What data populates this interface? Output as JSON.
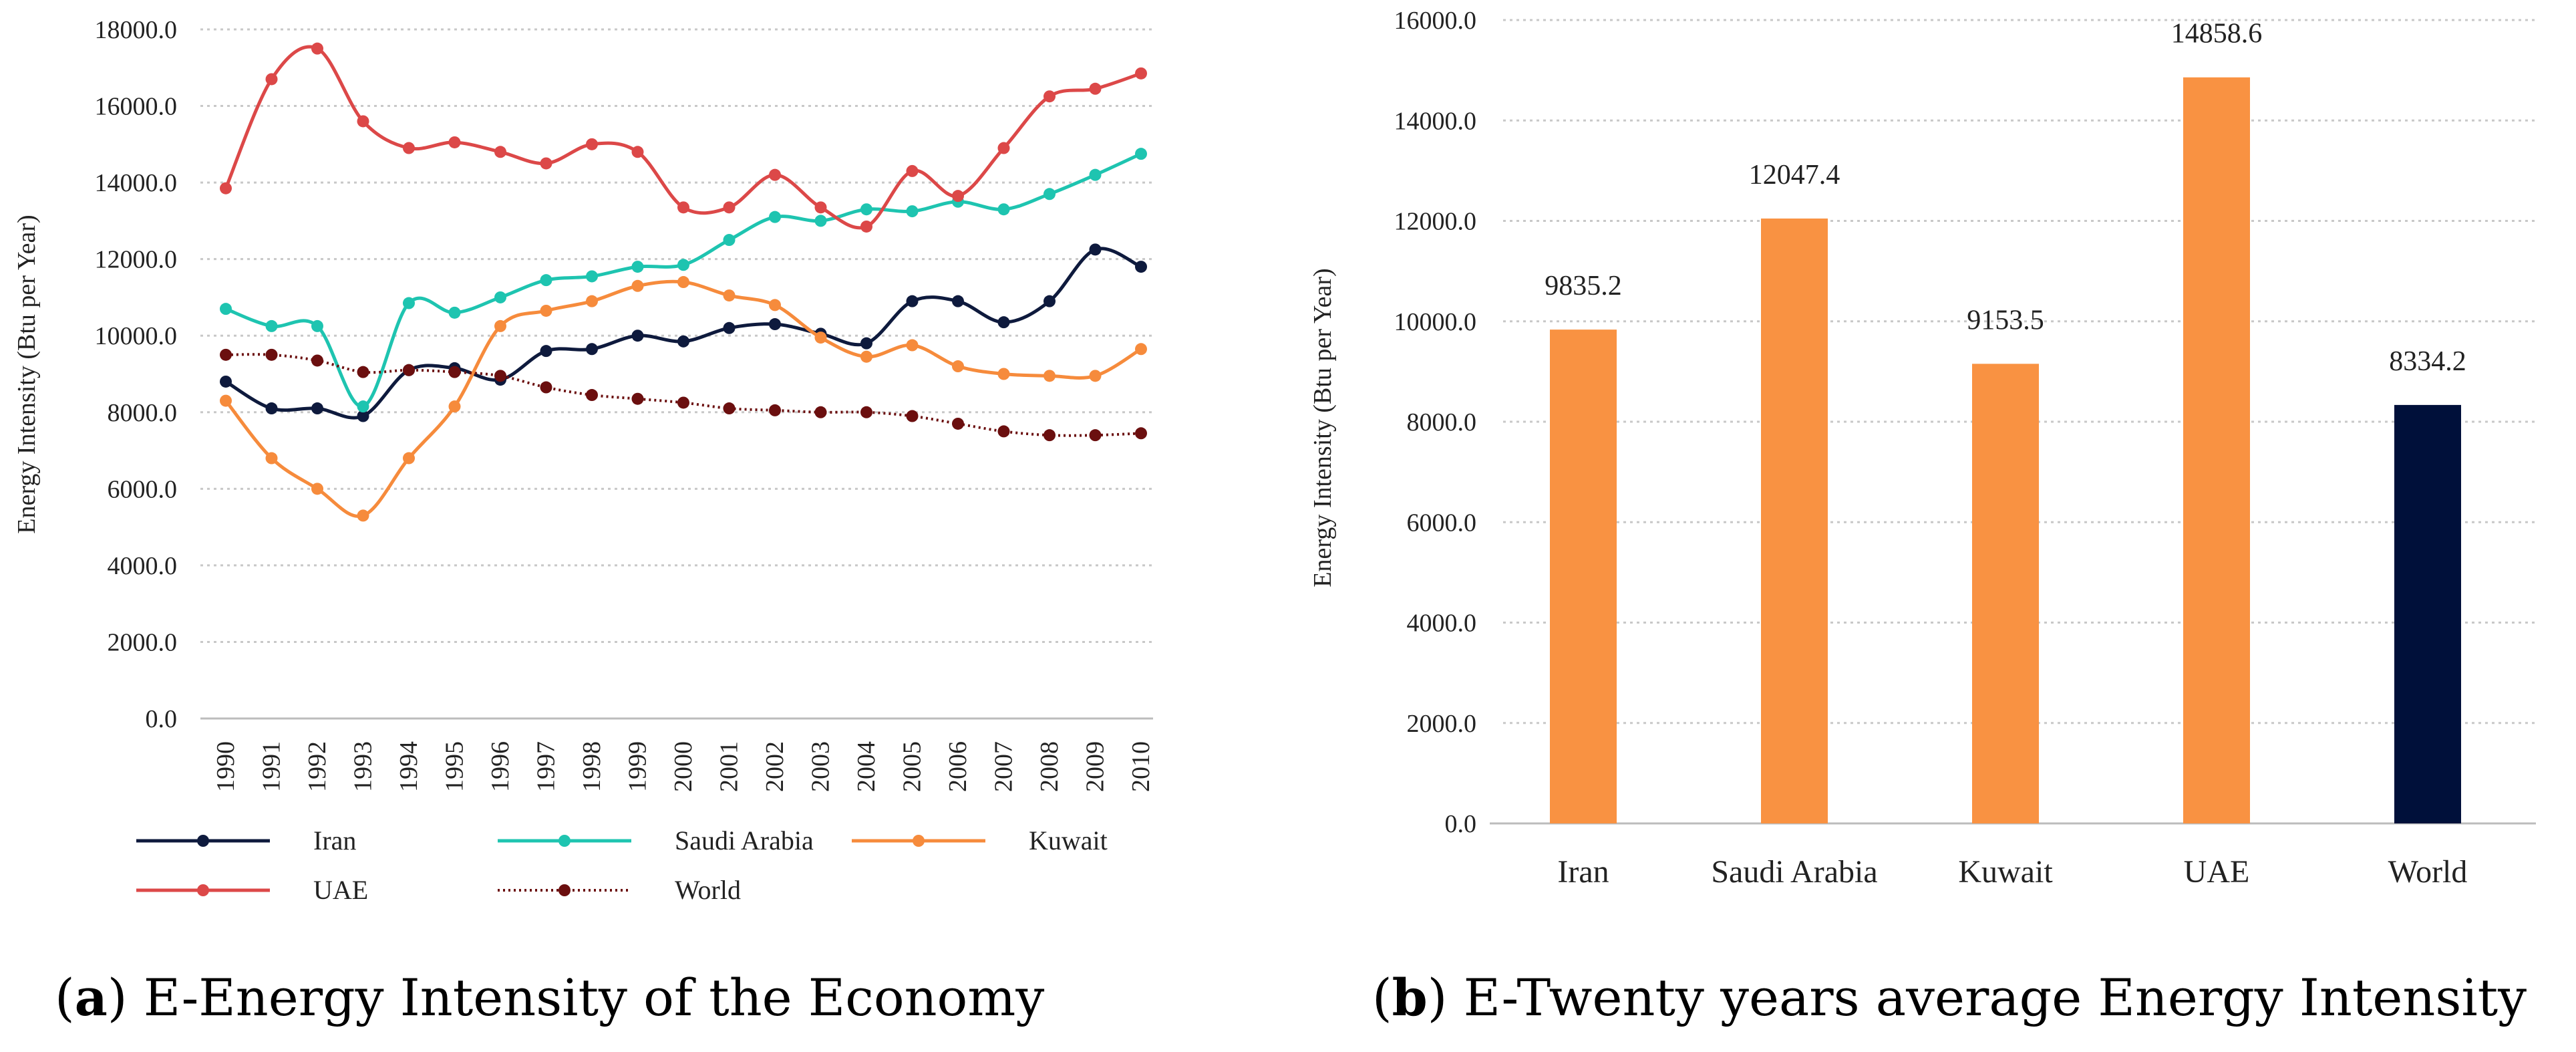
{
  "captions": {
    "a_letter": "a",
    "a_text": "E-Energy Intensity of the Economy",
    "b_letter": "b",
    "b_text": "E-Twenty years average Energy Intensity"
  },
  "chart_data": [
    {
      "type": "line",
      "ylabel": "Energy Intensity (Btu per Year)",
      "xlabel": "",
      "ylim": [
        0,
        18000
      ],
      "y_ticks": [
        "0.0",
        "2000.0",
        "4000.0",
        "6000.0",
        "8000.0",
        "10000.0",
        "12000.0",
        "14000.0",
        "16000.0",
        "18000.0"
      ],
      "grid": "horizontal dotted",
      "legend_position": "bottom",
      "x": [
        "1990",
        "1991",
        "1992",
        "1993",
        "1994",
        "1995",
        "1996",
        "1997",
        "1998",
        "1999",
        "2000",
        "2001",
        "2002",
        "2003",
        "2004",
        "2005",
        "2006",
        "2007",
        "2008",
        "2009",
        "2010"
      ],
      "series": [
        {
          "name": "Iran",
          "color": "#0e1a3d",
          "style": "solid",
          "values": [
            8800,
            8100,
            8100,
            7900,
            9100,
            9150,
            8850,
            9600,
            9650,
            10000,
            9850,
            10200,
            10300,
            10050,
            9800,
            10900,
            10900,
            10350,
            10900,
            12250,
            11800
          ]
        },
        {
          "name": "Saudi Arabia",
          "color": "#1ec4b0",
          "style": "solid",
          "values": [
            10700,
            10250,
            10250,
            8150,
            10850,
            10600,
            11000,
            11450,
            11550,
            11800,
            11850,
            12500,
            13100,
            13000,
            13300,
            13250,
            13500,
            13300,
            13700,
            14200,
            14750
          ]
        },
        {
          "name": "Kuwait",
          "color": "#f68b3c",
          "style": "solid",
          "values": [
            8300,
            6800,
            6000,
            5300,
            6800,
            8150,
            10250,
            10650,
            10900,
            11300,
            11400,
            11050,
            10800,
            9950,
            9450,
            9750,
            9200,
            9000,
            8950,
            8950,
            9650
          ]
        },
        {
          "name": "UAE",
          "color": "#dc4848",
          "style": "solid",
          "values": [
            13850,
            16700,
            17500,
            15600,
            14900,
            15050,
            14800,
            14500,
            15000,
            14800,
            13350,
            13350,
            14200,
            13350,
            12850,
            14300,
            13650,
            14900,
            16250,
            16450,
            16850
          ]
        },
        {
          "name": "World",
          "color": "#6b0f0f",
          "style": "dotted",
          "values": [
            9500,
            9500,
            9350,
            9050,
            9100,
            9050,
            8950,
            8650,
            8450,
            8350,
            8250,
            8100,
            8050,
            8000,
            8000,
            7900,
            7700,
            7500,
            7400,
            7400,
            7450
          ]
        }
      ]
    },
    {
      "type": "bar",
      "ylabel": "Energy Intensity (Btu per Year)",
      "xlabel": "",
      "ylim": [
        0,
        16000
      ],
      "y_ticks": [
        "0.0",
        "2000.0",
        "4000.0",
        "6000.0",
        "8000.0",
        "10000.0",
        "12000.0",
        "14000.0",
        "16000.0"
      ],
      "grid": "horizontal dotted",
      "categories": [
        "Iran",
        "Saudi Arabia",
        "Kuwait",
        "UAE",
        "World"
      ],
      "values": [
        9835.2,
        12047.4,
        9153.5,
        14858.6,
        8334.2
      ],
      "data_labels": [
        "9835.2",
        "12047.4",
        "9153.5",
        "14858.6",
        "8334.2"
      ],
      "colors": [
        "#f99242",
        "#f99242",
        "#f99242",
        "#f99242",
        "#00103a"
      ]
    }
  ]
}
